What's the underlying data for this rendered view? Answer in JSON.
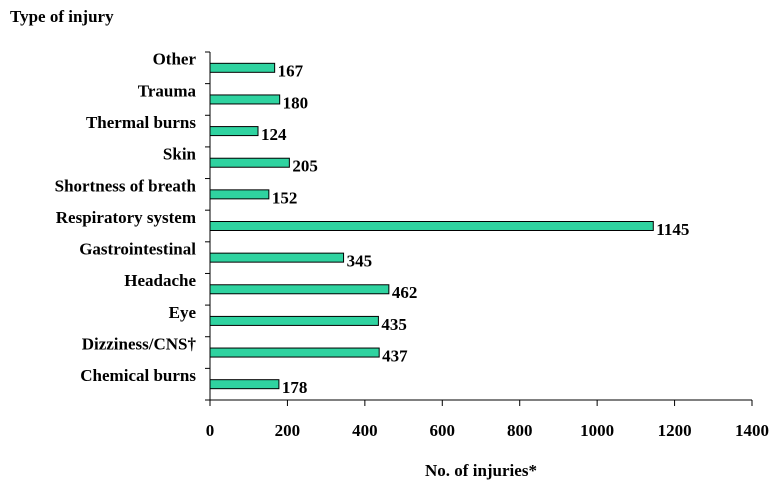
{
  "chart_data": {
    "type": "bar",
    "orientation": "horizontal",
    "title": "Type of injury",
    "x_label": "No. of injuries*",
    "categories": [
      "Other",
      "Trauma",
      "Thermal burns",
      "Skin",
      "Shortness of breath",
      "Respiratory system",
      "Gastrointestinal",
      "Headache",
      "Eye",
      "Dizziness/CNS†",
      "Chemical burns"
    ],
    "values": [
      167,
      180,
      124,
      205,
      152,
      1145,
      345,
      462,
      435,
      437,
      178
    ],
    "color": "#2fd3a0",
    "xlim": [
      0,
      1400
    ],
    "xticks": [
      0,
      200,
      400,
      600,
      800,
      1000,
      1200,
      1400
    ],
    "grid": false
  }
}
